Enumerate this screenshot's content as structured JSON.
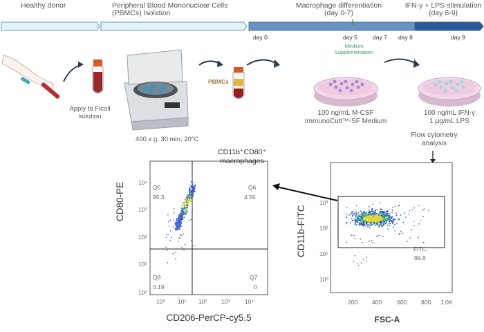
{
  "timeline": {
    "stages": [
      {
        "label": "Healthy donor"
      },
      {
        "label": "Peripheral Blood Mononuclear Cells\n(PBMCs) Isolation"
      },
      {
        "label": "Macrophage differentiation\n(day 0-7)"
      },
      {
        "label": "IFN-γ + LPS stimulation\n(day 8-9)"
      }
    ],
    "days": [
      "day 0",
      "day 5",
      "day 7",
      "day 8",
      "day 9"
    ],
    "medium_note": "Medium\nSupplementation"
  },
  "workflow": {
    "ficoll_note": "Apply to Ficoll\nsolution",
    "centrifuge_note": "400 x g, 30 min, 20°C",
    "pbmcs_label": "PBMCs",
    "differentiation_conditions": "100 ng/mL M-CSF\nImmunoCult™-SF Medium",
    "stimulation_conditions": "100 ng/mL IFN-γ\n1 μg/mL LPS",
    "flow_label": "Flow cytometry\nanalysis",
    "gated_population": "CD11b⁺CD80⁺\nmacrophages"
  },
  "left_plot": {
    "xlabel": "CD206-PerCP-cy5.5",
    "ylabel": "CD80-PE",
    "xticks": [
      "10⁰",
      "10¹",
      "10²",
      "10³",
      "10⁴"
    ],
    "yticks": [
      "10⁰",
      "10¹",
      "10²",
      "10³",
      "10⁴"
    ],
    "quadrants": [
      {
        "name": "Q5",
        "value": "95.3"
      },
      {
        "name": "Q6",
        "value": "4.55"
      },
      {
        "name": "Q8",
        "value": "0.19"
      },
      {
        "name": "Q7",
        "value": "0"
      }
    ]
  },
  "right_plot": {
    "xlabel": "FSC-A",
    "ylabel": "CD11b-FITC",
    "xticks": [
      "200",
      "400",
      "600",
      "800",
      "1.0K"
    ],
    "yticks": [
      "10⁰",
      "10¹",
      "10²",
      "10³"
    ],
    "gate": {
      "name": "FITC",
      "value": "99.8"
    }
  },
  "colors": {
    "timeline_light": "#dff1f8",
    "timeline_mid": "#5b88b8",
    "timeline_dark": "#2e5a99",
    "arrow": "#2b3a55",
    "medium_note": "#3aa05a"
  }
}
